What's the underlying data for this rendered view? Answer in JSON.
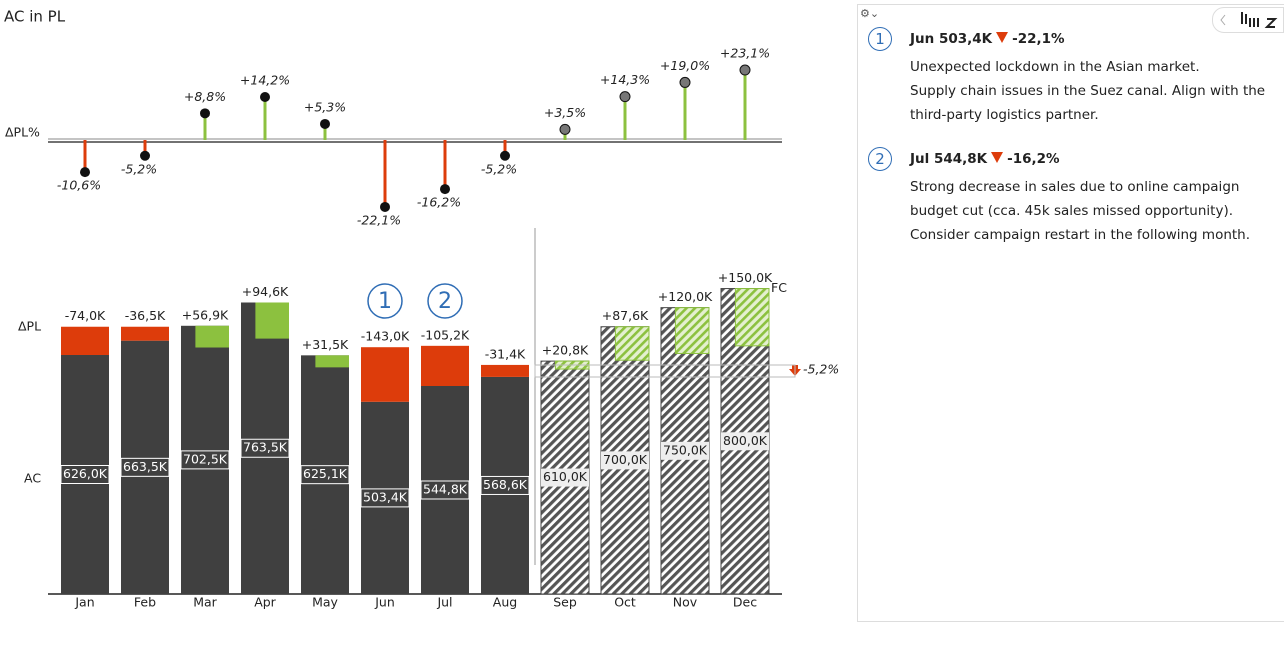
{
  "chart_data": {
    "type": "variance-bar",
    "title": "AC in PL",
    "categories": [
      "Jan",
      "Feb",
      "Mar",
      "Apr",
      "May",
      "Jun",
      "Jul",
      "Aug",
      "Sep",
      "Oct",
      "Nov",
      "Dec"
    ],
    "forecast_start": "Sep",
    "forecast_label": "FC",
    "series": [
      {
        "name": "ΔPL%",
        "values": [
          -10.6,
          -5.2,
          8.8,
          14.2,
          5.3,
          -22.1,
          -16.2,
          -5.2,
          3.5,
          14.3,
          19.0,
          23.1
        ],
        "value_labels": [
          "-10,6%",
          "-5,2%",
          "+8,8%",
          "+14,2%",
          "+5,3%",
          "-22,1%",
          "-16,2%",
          "-5,2%",
          "+3,5%",
          "+14,3%",
          "+19,0%",
          "+23,1%"
        ],
        "positive_color": "#8cc13f",
        "negative_color": "#dd3c0b"
      },
      {
        "name": "ΔPL",
        "values": [
          -74.0,
          -36.5,
          56.9,
          94.6,
          31.5,
          -143.0,
          -105.2,
          -31.4,
          20.8,
          87.6,
          120.0,
          150.0
        ],
        "value_labels": [
          "-74,0K",
          "-36,5K",
          "+56,9K",
          "+94,6K",
          "+31,5K",
          "-143,0K",
          "-105,2K",
          "-31,4K",
          "+20,8K",
          "+87,6K",
          "+120,0K",
          "+150,0K"
        ],
        "positive_color": "#8cc13f",
        "negative_color": "#dd3c0b"
      },
      {
        "name": "AC",
        "values": [
          626.0,
          663.5,
          702.5,
          763.5,
          625.1,
          503.4,
          544.8,
          568.6,
          610.0,
          700.0,
          750.0,
          800.0
        ],
        "value_labels": [
          "626,0K",
          "663,5K",
          "702,5K",
          "763,5K",
          "625,1K",
          "503,4K",
          "544,8K",
          "568,6K",
          "610,0K",
          "700,0K",
          "750,0K",
          "800,0K"
        ],
        "color": "#404040"
      }
    ],
    "total_delta_pct": -5.2,
    "total_delta_pct_label": "-5,2%"
  },
  "comments": [
    {
      "marker": "1",
      "title": "Jun 503,4K",
      "delta": "-22,1%",
      "lines": [
        "Unexpected lockdown in the Asian market.",
        "Supply chain issues in the Suez canal. Align with the third-party logistics partner."
      ]
    },
    {
      "marker": "2",
      "title": "Jul 544,8K",
      "delta": "-16,2%",
      "lines": [
        "Strong decrease in sales due to online campaign budget cut (cca. 45k sales missed opportunity).",
        "Consider campaign restart in the following month."
      ]
    }
  ]
}
